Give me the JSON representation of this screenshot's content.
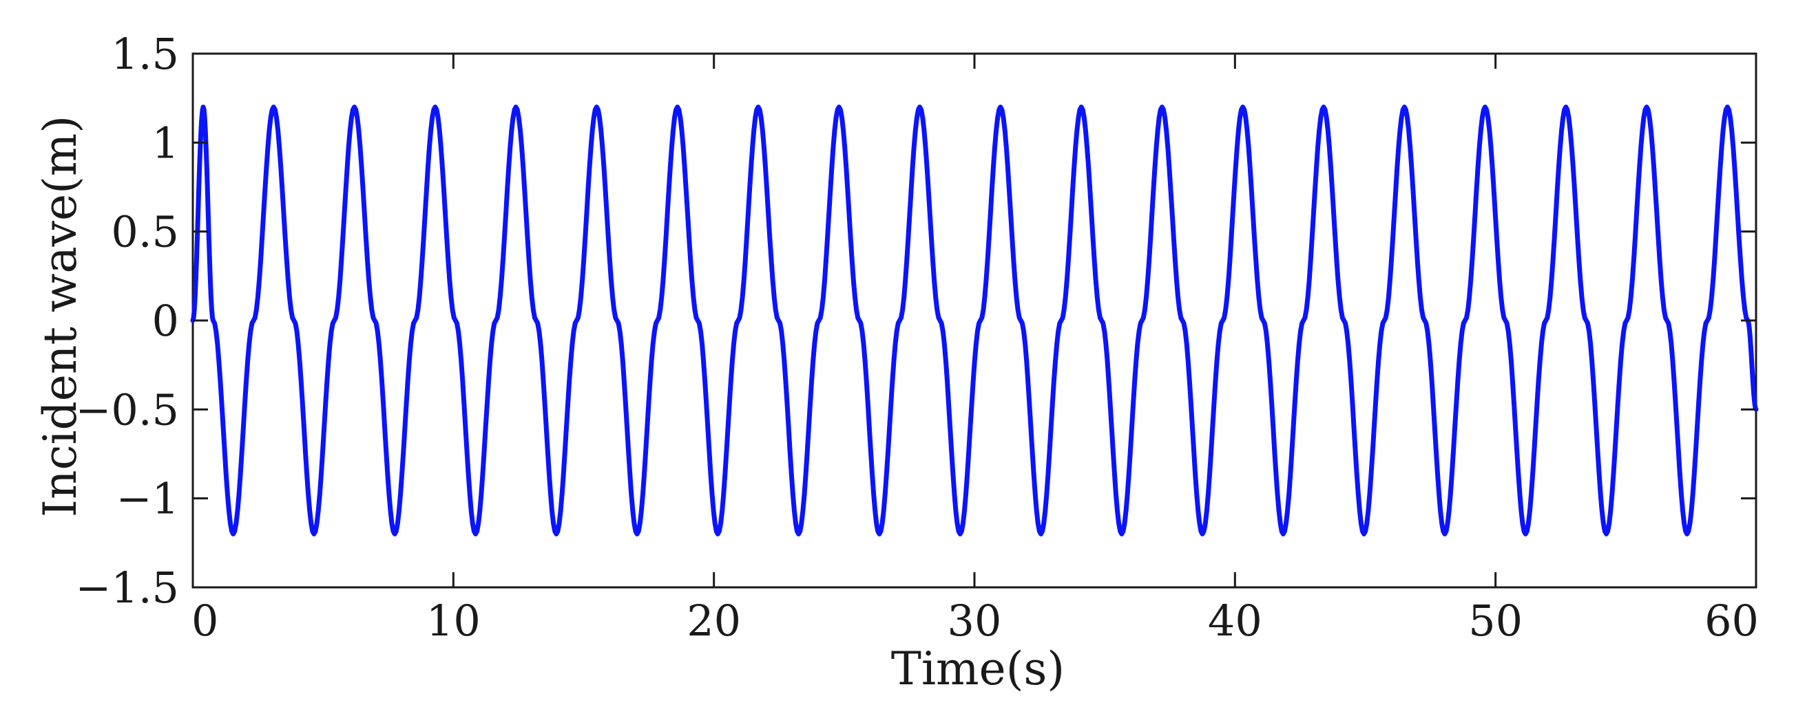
{
  "chart_data": {
    "type": "line",
    "title": "",
    "xlabel": "Time(s)",
    "ylabel": "Incident wave(m)",
    "xlim": [
      0,
      60
    ],
    "ylim": [
      -1.5,
      1.5
    ],
    "xticks": [
      {
        "value": 0,
        "label": "0"
      },
      {
        "value": 10,
        "label": "10"
      },
      {
        "value": 20,
        "label": "20"
      },
      {
        "value": 30,
        "label": "30"
      },
      {
        "value": 40,
        "label": "40"
      },
      {
        "value": 50,
        "label": "50"
      },
      {
        "value": 60,
        "label": "60"
      }
    ],
    "yticks": [
      {
        "value": -1.5,
        "label": "−1.5"
      },
      {
        "value": -1,
        "label": "−1"
      },
      {
        "value": -0.5,
        "label": "−0.5"
      },
      {
        "value": 0,
        "label": "0"
      },
      {
        "value": 0.5,
        "label": "0.5"
      },
      {
        "value": 1,
        "label": "1"
      },
      {
        "value": 1.5,
        "label": "1.5"
      }
    ],
    "grid": false,
    "legend": "none",
    "series": [
      {
        "color": "#0a14ff",
        "amplitude": 1.2,
        "period": 3.1,
        "points": [
          [
            0.0,
            0.0
          ],
          [
            0.4,
            1.2
          ],
          [
            0.78,
            0.0
          ],
          [
            1.55,
            -1.2
          ],
          [
            2.33,
            0.0
          ],
          [
            3.1,
            1.2
          ],
          [
            3.88,
            0.0
          ],
          [
            4.65,
            -1.2
          ],
          [
            5.43,
            0.0
          ],
          [
            6.2,
            1.2
          ],
          [
            6.98,
            0.0
          ],
          [
            7.75,
            -1.2
          ],
          [
            8.53,
            0.0
          ],
          [
            9.3,
            1.2
          ],
          [
            10.08,
            0.0
          ],
          [
            10.85,
            -1.2
          ],
          [
            11.63,
            0.0
          ],
          [
            12.4,
            1.2
          ],
          [
            13.18,
            0.0
          ],
          [
            13.95,
            -1.2
          ],
          [
            14.73,
            0.0
          ],
          [
            15.5,
            1.2
          ],
          [
            16.28,
            0.0
          ],
          [
            17.05,
            -1.2
          ],
          [
            17.83,
            0.0
          ],
          [
            18.6,
            1.2
          ],
          [
            19.38,
            0.0
          ],
          [
            20.15,
            -1.2
          ],
          [
            20.93,
            0.0
          ],
          [
            21.7,
            1.2
          ],
          [
            22.48,
            0.0
          ],
          [
            23.25,
            -1.2
          ],
          [
            24.03,
            0.0
          ],
          [
            24.8,
            1.2
          ],
          [
            25.58,
            0.0
          ],
          [
            26.35,
            -1.2
          ],
          [
            27.13,
            0.0
          ],
          [
            27.9,
            1.2
          ],
          [
            28.68,
            0.0
          ],
          [
            29.45,
            -1.2
          ],
          [
            30.23,
            0.0
          ],
          [
            31.0,
            1.2
          ],
          [
            31.78,
            0.0
          ],
          [
            32.55,
            -1.2
          ],
          [
            33.33,
            0.0
          ],
          [
            34.1,
            1.2
          ],
          [
            34.88,
            0.0
          ],
          [
            35.65,
            -1.2
          ],
          [
            36.43,
            0.0
          ],
          [
            37.2,
            1.2
          ],
          [
            37.98,
            0.0
          ],
          [
            38.75,
            -1.2
          ],
          [
            39.53,
            0.0
          ],
          [
            40.3,
            1.2
          ],
          [
            41.08,
            0.0
          ],
          [
            41.85,
            -1.2
          ],
          [
            42.63,
            0.0
          ],
          [
            43.4,
            1.2
          ],
          [
            44.18,
            0.0
          ],
          [
            44.95,
            -1.2
          ],
          [
            45.73,
            0.0
          ],
          [
            46.5,
            1.2
          ],
          [
            47.28,
            0.0
          ],
          [
            48.05,
            -1.2
          ],
          [
            48.83,
            0.0
          ],
          [
            49.6,
            1.2
          ],
          [
            50.38,
            0.0
          ],
          [
            51.15,
            -1.2
          ],
          [
            51.93,
            0.0
          ],
          [
            52.7,
            1.2
          ],
          [
            53.48,
            0.0
          ],
          [
            54.25,
            -1.2
          ],
          [
            55.03,
            0.0
          ],
          [
            55.8,
            1.2
          ],
          [
            56.58,
            0.0
          ],
          [
            57.35,
            -1.2
          ],
          [
            58.13,
            0.0
          ],
          [
            58.9,
            1.2
          ],
          [
            59.68,
            0.0
          ],
          [
            60.0,
            -0.5
          ]
        ]
      }
    ]
  }
}
